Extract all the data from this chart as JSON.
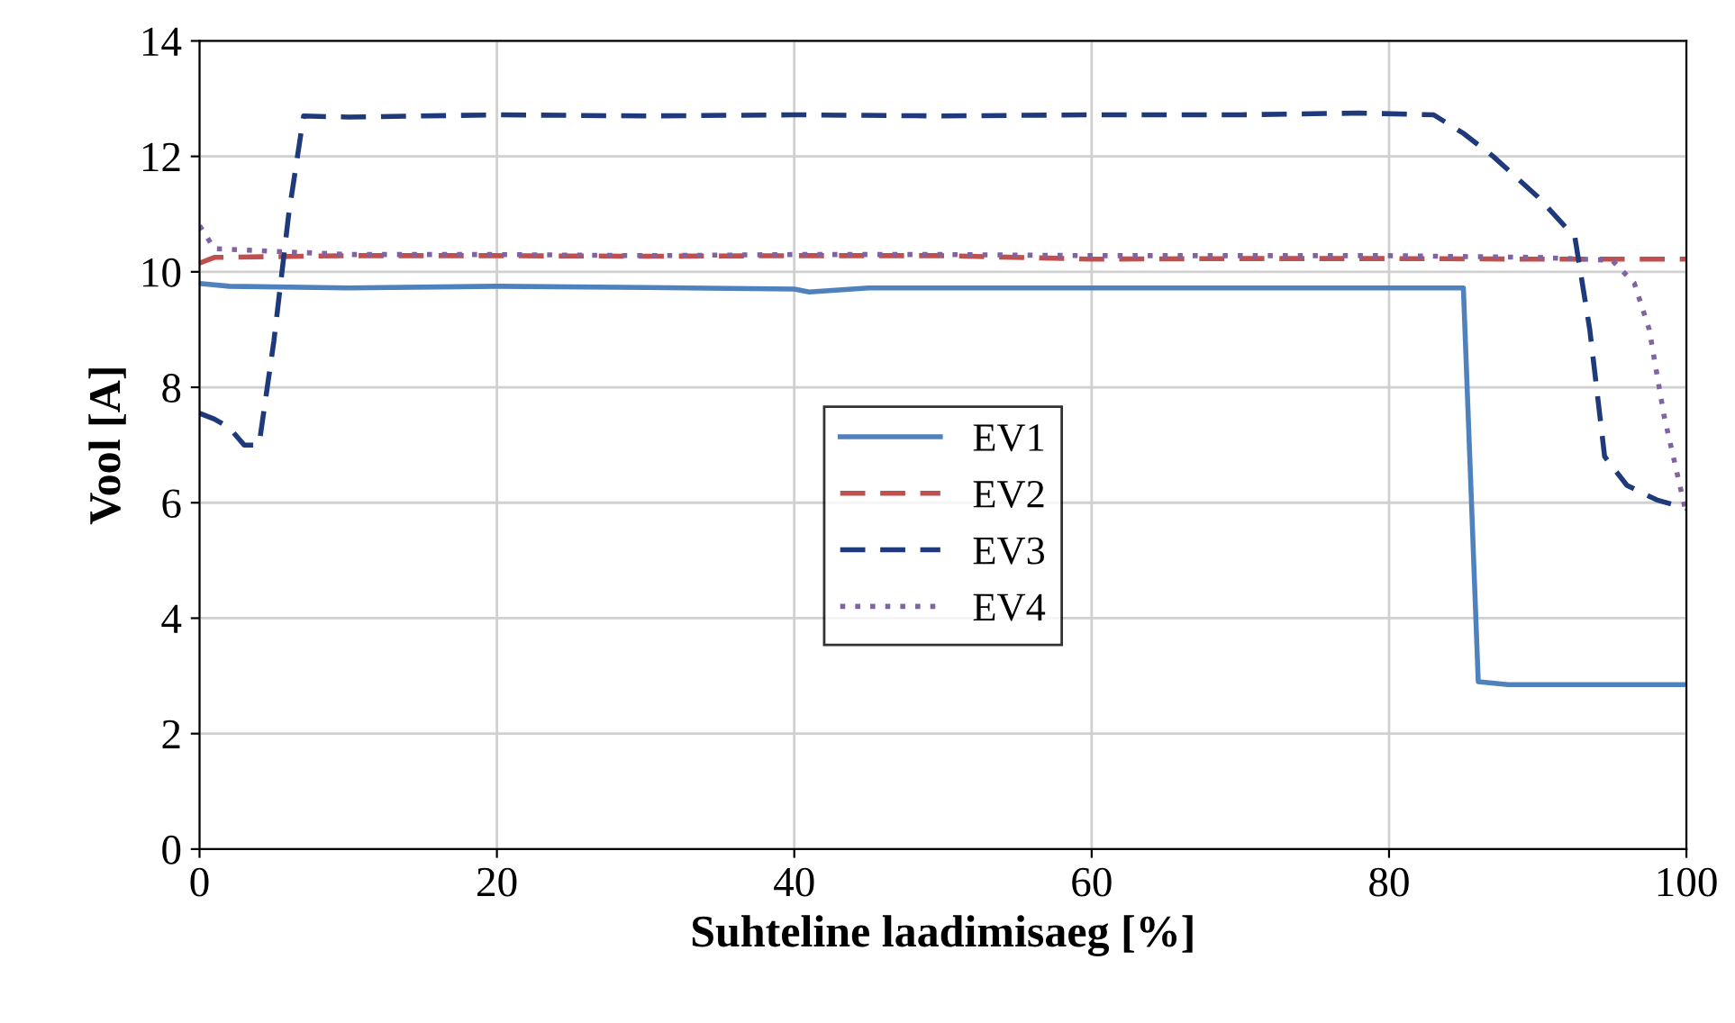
{
  "chart_data": {
    "type": "line",
    "xlabel": "Suhteline laadimisaeg [%]",
    "ylabel": "Vool [A]",
    "xlim": [
      0,
      100
    ],
    "ylim": [
      0,
      14
    ],
    "xticks": [
      0,
      20,
      40,
      60,
      80,
      100
    ],
    "yticks": [
      0,
      2,
      4,
      6,
      8,
      10,
      12,
      14
    ],
    "grid": true,
    "legend": "center",
    "series": [
      {
        "name": "EV1",
        "color": "#4f81bd",
        "line_style": "solid",
        "x": [
          0,
          2,
          10,
          20,
          30,
          40,
          41,
          45,
          60,
          80,
          85,
          86,
          88,
          100
        ],
        "values": [
          9.8,
          9.75,
          9.72,
          9.75,
          9.73,
          9.7,
          9.65,
          9.72,
          9.72,
          9.72,
          9.72,
          2.9,
          2.85,
          2.85
        ]
      },
      {
        "name": "EV2",
        "color": "#c0504d",
        "line_style": "dashed",
        "x": [
          0,
          1,
          10,
          20,
          30,
          40,
          50,
          60,
          70,
          80,
          90,
          100
        ],
        "values": [
          10.15,
          10.25,
          10.28,
          10.28,
          10.27,
          10.28,
          10.28,
          10.22,
          10.23,
          10.23,
          10.22,
          10.22
        ]
      },
      {
        "name": "EV3",
        "color": "#1f3a7a",
        "line_style": "dashed",
        "x": [
          0,
          1,
          2,
          3,
          4,
          5,
          6,
          7,
          10,
          20,
          30,
          40,
          50,
          60,
          70,
          78,
          83,
          85,
          87,
          90,
          92.5,
          93.5,
          94.5,
          96,
          98,
          100
        ],
        "values": [
          7.55,
          7.45,
          7.3,
          7.0,
          7.0,
          8.8,
          11.0,
          12.7,
          12.68,
          12.72,
          12.7,
          12.72,
          12.7,
          12.72,
          12.72,
          12.75,
          12.72,
          12.4,
          12.0,
          11.3,
          10.6,
          9.0,
          6.8,
          6.3,
          6.05,
          5.9
        ]
      },
      {
        "name": "EV4",
        "color": "#8064a2",
        "line_style": "dotted",
        "x": [
          0,
          1,
          10,
          20,
          30,
          40,
          50,
          60,
          70,
          80,
          90,
          95,
          96.5,
          97.5,
          98.5,
          100
        ],
        "values": [
          10.8,
          10.4,
          10.3,
          10.3,
          10.28,
          10.3,
          10.3,
          10.28,
          10.28,
          10.28,
          10.25,
          10.2,
          9.8,
          9.0,
          7.5,
          5.8
        ]
      }
    ]
  }
}
